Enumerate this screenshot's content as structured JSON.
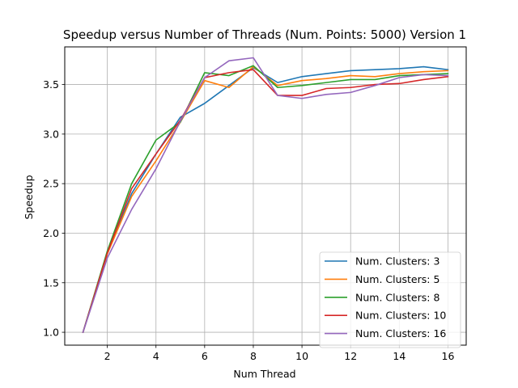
{
  "chart_data": {
    "type": "line",
    "title": "Speedup versus Number of Threads (Num. Points: 5000) Version 1",
    "xlabel": "Num Thread",
    "ylabel": "Speedup",
    "xlim": [
      0.25,
      16.75
    ],
    "ylim": [
      0.87,
      3.88
    ],
    "xticks": [
      2,
      4,
      6,
      8,
      10,
      12,
      14,
      16
    ],
    "yticks": [
      1.0,
      1.5,
      2.0,
      2.5,
      3.0,
      3.5
    ],
    "grid": true,
    "legend_position": "lower-right",
    "x": [
      1,
      2,
      3,
      4,
      5,
      6,
      7,
      8,
      9,
      10,
      11,
      12,
      13,
      14,
      15,
      16
    ],
    "series": [
      {
        "name": "Num. Clusters: 3",
        "color": "#1f77b4",
        "values": [
          1.0,
          1.8,
          2.4,
          2.8,
          3.17,
          3.31,
          3.49,
          3.67,
          3.52,
          3.58,
          3.61,
          3.64,
          3.65,
          3.66,
          3.68,
          3.65
        ]
      },
      {
        "name": "Num. Clusters: 5",
        "color": "#ff7f0e",
        "values": [
          1.0,
          1.79,
          2.37,
          2.73,
          3.12,
          3.54,
          3.47,
          3.68,
          3.49,
          3.54,
          3.56,
          3.59,
          3.58,
          3.61,
          3.63,
          3.64
        ]
      },
      {
        "name": "Num. Clusters: 8",
        "color": "#2ca02c",
        "values": [
          1.0,
          1.82,
          2.5,
          2.94,
          3.12,
          3.62,
          3.59,
          3.69,
          3.47,
          3.49,
          3.52,
          3.55,
          3.55,
          3.59,
          3.6,
          3.61
        ]
      },
      {
        "name": "Num. Clusters: 10",
        "color": "#d62728",
        "values": [
          1.0,
          1.8,
          2.45,
          2.8,
          3.14,
          3.57,
          3.62,
          3.65,
          3.39,
          3.39,
          3.46,
          3.47,
          3.5,
          3.51,
          3.55,
          3.58
        ]
      },
      {
        "name": "Num. Clusters: 16",
        "color": "#9467bd",
        "values": [
          1.0,
          1.75,
          2.24,
          2.65,
          3.13,
          3.57,
          3.74,
          3.77,
          3.39,
          3.36,
          3.4,
          3.42,
          3.49,
          3.57,
          3.6,
          3.59
        ]
      }
    ]
  }
}
